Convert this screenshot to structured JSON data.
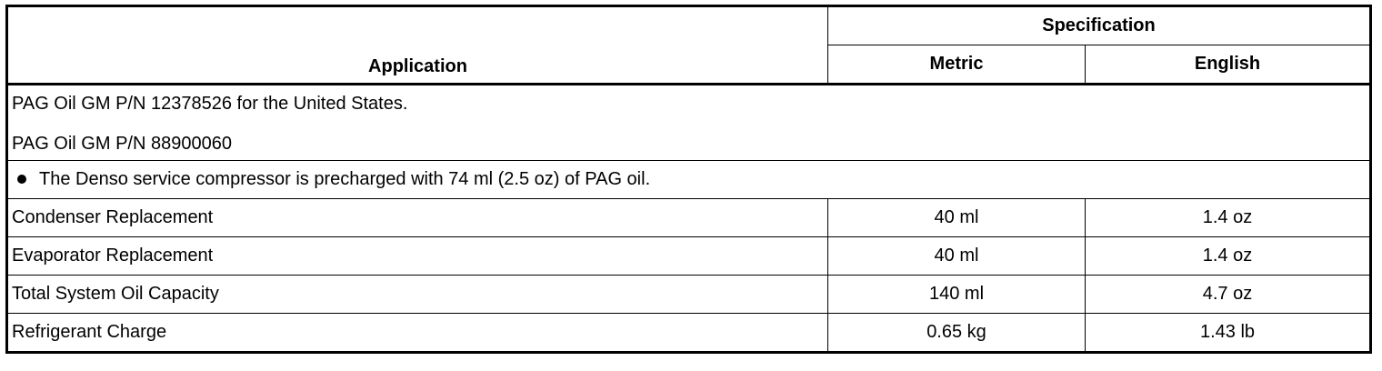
{
  "header": {
    "application": "Application",
    "specification": "Specification",
    "metric": "Metric",
    "english": "English"
  },
  "notes": [
    "PAG Oil GM P/N 12378526 for the United States.",
    "PAG Oil GM P/N 88900060"
  ],
  "bullet_note": "The Denso service compressor is precharged with 74 ml (2.5 oz) of PAG oil.",
  "rows": [
    {
      "application": "Condenser Replacement",
      "metric": "40 ml",
      "english": "1.4 oz"
    },
    {
      "application": "Evaporator Replacement",
      "metric": "40 ml",
      "english": "1.4 oz"
    },
    {
      "application": "Total System Oil Capacity",
      "metric": "140 ml",
      "english": "4.7 oz"
    },
    {
      "application": "Refrigerant Charge",
      "metric": "0.65 kg",
      "english": "1.43 lb"
    }
  ]
}
